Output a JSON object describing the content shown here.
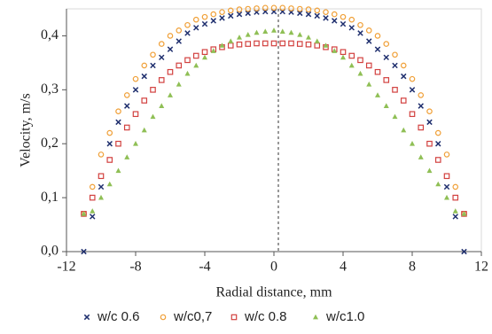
{
  "chart_data": {
    "type": "scatter",
    "x_label": "Radial distance, mm",
    "y_label": "Velocity, m/s",
    "x": [
      -11,
      -10.5,
      -10,
      -9.5,
      -9,
      -8.5,
      -8,
      -7.5,
      -7,
      -6.5,
      -6,
      -5.5,
      -5,
      -4.5,
      -4,
      -3.5,
      -3,
      -2.5,
      -2,
      -1.5,
      -1,
      -0.5,
      0,
      0.5,
      1,
      1.5,
      2,
      2.5,
      3,
      3.5,
      4,
      4.5,
      5,
      5.5,
      6,
      6.5,
      7,
      7.5,
      8,
      8.5,
      9,
      9.5,
      10,
      10.5,
      11
    ],
    "series": [
      {
        "name": "w/c 0.6",
        "color": "#1f2f6e",
        "marker": "x",
        "values": [
          0,
          0.065,
          0.12,
          0.2,
          0.24,
          0.27,
          0.3,
          0.325,
          0.345,
          0.36,
          0.375,
          0.39,
          0.405,
          0.415,
          0.422,
          0.428,
          0.433,
          0.437,
          0.44,
          0.442,
          0.444,
          0.445,
          0.445,
          0.445,
          0.444,
          0.442,
          0.44,
          0.437,
          0.433,
          0.428,
          0.422,
          0.415,
          0.405,
          0.39,
          0.375,
          0.36,
          0.345,
          0.325,
          0.3,
          0.27,
          0.24,
          0.2,
          0.12,
          0.065,
          0
        ]
      },
      {
        "name": "w/c0,7",
        "color": "#f0a038",
        "marker": "circle",
        "values": [
          0.07,
          0.12,
          0.18,
          0.22,
          0.26,
          0.29,
          0.32,
          0.345,
          0.365,
          0.385,
          0.4,
          0.41,
          0.42,
          0.43,
          0.435,
          0.44,
          0.444,
          0.447,
          0.449,
          0.45,
          0.451,
          0.452,
          0.452,
          0.452,
          0.451,
          0.45,
          0.449,
          0.447,
          0.444,
          0.44,
          0.435,
          0.43,
          0.42,
          0.41,
          0.4,
          0.385,
          0.365,
          0.345,
          0.32,
          0.29,
          0.26,
          0.22,
          0.18,
          0.12,
          0.07
        ]
      },
      {
        "name": "w/c 0.8",
        "color": "#d2413f",
        "marker": "square",
        "values": [
          0.07,
          0.1,
          0.14,
          0.17,
          0.2,
          0.23,
          0.255,
          0.28,
          0.3,
          0.318,
          0.333,
          0.345,
          0.355,
          0.363,
          0.37,
          0.375,
          0.379,
          0.382,
          0.384,
          0.385,
          0.386,
          0.386,
          0.386,
          0.386,
          0.386,
          0.385,
          0.384,
          0.382,
          0.379,
          0.375,
          0.37,
          0.363,
          0.355,
          0.345,
          0.333,
          0.318,
          0.3,
          0.28,
          0.255,
          0.23,
          0.2,
          0.17,
          0.14,
          0.1,
          0.07
        ]
      },
      {
        "name": "w/c1.0",
        "color": "#8fbf55",
        "marker": "triangle",
        "values": [
          0.07,
          0.075,
          0.1,
          0.125,
          0.15,
          0.175,
          0.2,
          0.225,
          0.25,
          0.27,
          0.29,
          0.31,
          0.33,
          0.345,
          0.36,
          0.372,
          0.382,
          0.39,
          0.397,
          0.402,
          0.406,
          0.408,
          0.41,
          0.408,
          0.406,
          0.402,
          0.397,
          0.39,
          0.382,
          0.372,
          0.36,
          0.345,
          0.33,
          0.31,
          0.29,
          0.27,
          0.25,
          0.225,
          0.2,
          0.175,
          0.15,
          0.125,
          0.1,
          0.075,
          0.07
        ]
      }
    ],
    "xlim": [
      -12,
      12
    ],
    "xticks": [
      -12,
      -8,
      -4,
      0,
      4,
      8,
      12
    ],
    "ylim": [
      0,
      0.45
    ],
    "yticks": [
      {
        "value": 0,
        "label": "0,0"
      },
      {
        "value": 0.1,
        "label": "0,1"
      },
      {
        "value": 0.2,
        "label": "0,2"
      },
      {
        "value": 0.3,
        "label": "0,3"
      },
      {
        "value": 0.4,
        "label": "0,4"
      }
    ],
    "legend": "bottom"
  }
}
